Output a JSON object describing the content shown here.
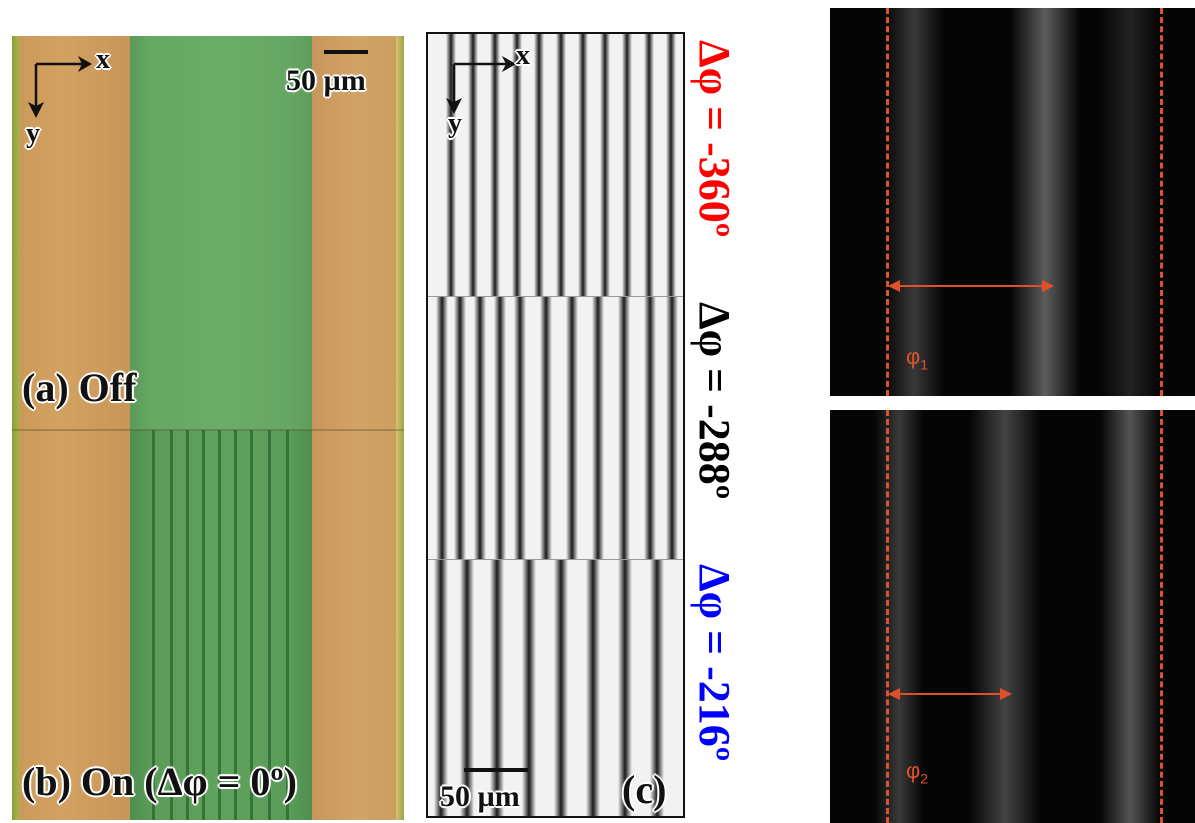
{
  "panel_ab": {
    "axis_x": "x",
    "axis_y": "y",
    "scale_bar_label": "50 µm",
    "label_off": "(a) Off",
    "label_on": "(b) On (Δφ = 0º)"
  },
  "panel_c": {
    "axis_x": "x",
    "axis_y": "y",
    "scale_bar_label": "50 µm",
    "panel_label": "(c)"
  },
  "phase_labels": [
    {
      "text": "Δφ = -360º",
      "color": "#ff0000"
    },
    {
      "text": "Δφ = -288º",
      "color": "#000000"
    },
    {
      "text": "Δφ = -216º",
      "color": "#0000ff"
    }
  ],
  "fluorescence": {
    "top_label": "φ",
    "top_sub": "1",
    "bottom_label": "φ",
    "bottom_sub": "2",
    "marker_color": "#e0502a"
  }
}
